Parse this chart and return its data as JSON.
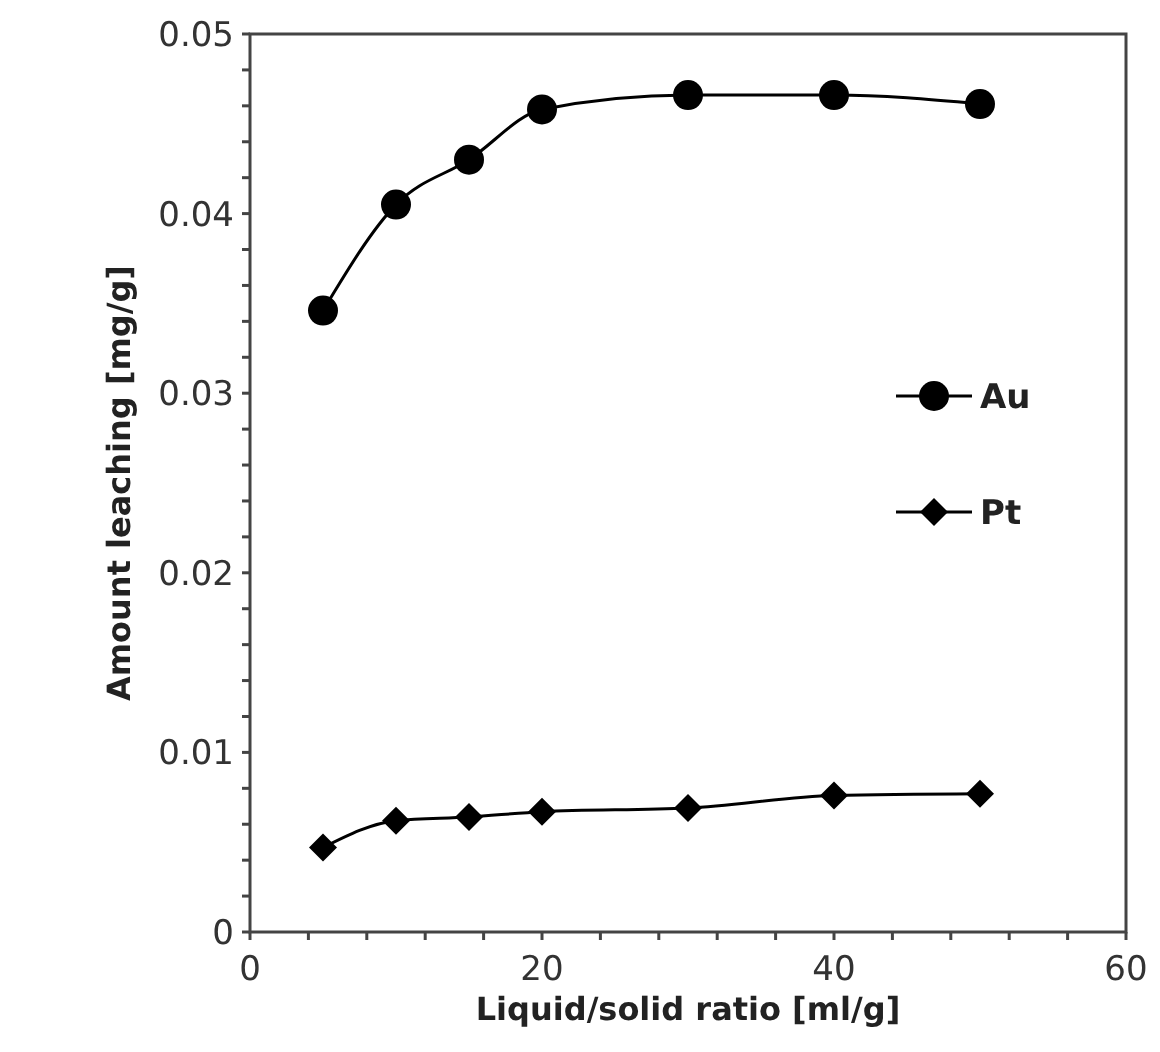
{
  "chart_data": {
    "type": "line",
    "xlabel": "Liquid/solid ratio  [ml/g]",
    "ylabel": "Amount leaching [mg/g]",
    "x": [
      5,
      10,
      15,
      20,
      30,
      40,
      50
    ],
    "series": [
      {
        "name": "Au",
        "color": "#000000",
        "marker": "circle",
        "values": [
          0.0346,
          0.0405,
          0.043,
          0.0458,
          0.0466,
          0.0466,
          0.0461
        ]
      },
      {
        "name": "Pt",
        "color": "#000000",
        "marker": "diamond",
        "values": [
          0.0047,
          0.0062,
          0.0064,
          0.0067,
          0.0069,
          0.0076,
          0.0077
        ]
      }
    ],
    "xlim": [
      0,
      60
    ],
    "xticks": [
      0,
      {
        "value": 4,
        "label": null
      },
      {
        "value": 8,
        "label": null
      },
      {
        "value": 12,
        "label": null
      },
      {
        "value": 16,
        "label": null
      },
      20,
      {
        "value": 24,
        "label": null
      },
      {
        "value": 28,
        "label": null
      },
      {
        "value": 32,
        "label": null
      },
      {
        "value": 36,
        "label": null
      },
      40,
      {
        "value": 44,
        "label": null
      },
      {
        "value": 48,
        "label": null
      },
      {
        "value": 52,
        "label": null
      },
      {
        "value": 56,
        "label": null
      },
      60
    ],
    "ylim": [
      0,
      0.05
    ],
    "yticks": [
      0,
      {
        "value": 0.002,
        "label": null
      },
      {
        "value": 0.004,
        "label": null
      },
      {
        "value": 0.006,
        "label": null
      },
      {
        "value": 0.008,
        "label": null
      },
      0.01,
      {
        "value": 0.012,
        "label": null
      },
      {
        "value": 0.014,
        "label": null
      },
      {
        "value": 0.016,
        "label": null
      },
      {
        "value": 0.018,
        "label": null
      },
      0.02,
      {
        "value": 0.022,
        "label": null
      },
      {
        "value": 0.024,
        "label": null
      },
      {
        "value": 0.026,
        "label": null
      },
      {
        "value": 0.028,
        "label": null
      },
      0.03,
      {
        "value": 0.032,
        "label": null
      },
      {
        "value": 0.034,
        "label": null
      },
      {
        "value": 0.036,
        "label": null
      },
      {
        "value": 0.038,
        "label": null
      },
      0.04,
      {
        "value": 0.042,
        "label": null
      },
      {
        "value": 0.044,
        "label": null
      },
      {
        "value": 0.046,
        "label": null
      },
      {
        "value": 0.048,
        "label": null
      },
      0.05
    ],
    "grid": false,
    "legend": "right",
    "line_style": "solid"
  }
}
